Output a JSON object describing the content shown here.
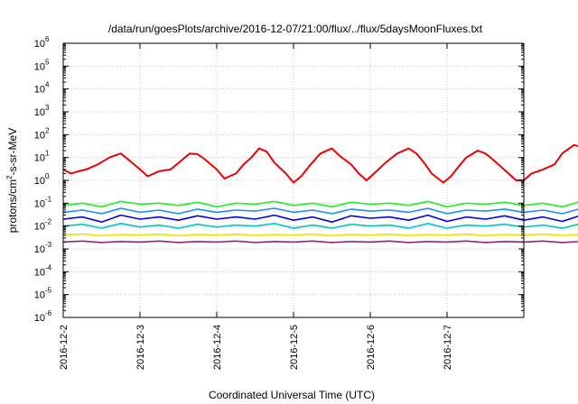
{
  "chart_data": {
    "type": "line",
    "title": "/data/run/goesPlots/archive/2016-12-07/21:00/flux/../flux/5daysMoonFluxes.txt",
    "xlabel": "Coordinated Universal Time (UTC)",
    "ylabel": {
      "base": "protons/cm",
      "sup": "2",
      "rest": "-s-sr-MeV"
    },
    "yscale": "log",
    "ylim": [
      1e-06,
      1000000.0
    ],
    "xlim": [
      "2016-12-02",
      "2016-12-08"
    ],
    "grid": true,
    "y_ticks": [
      {
        "base": "10",
        "exp": "-6"
      },
      {
        "base": "10",
        "exp": "-5"
      },
      {
        "base": "10",
        "exp": "-4"
      },
      {
        "base": "10",
        "exp": "-3"
      },
      {
        "base": "10",
        "exp": "-2"
      },
      {
        "base": "10",
        "exp": "-1"
      },
      {
        "base": "10",
        "exp": "0"
      },
      {
        "base": "10",
        "exp": "1"
      },
      {
        "base": "10",
        "exp": "2"
      },
      {
        "base": "10",
        "exp": "3"
      },
      {
        "base": "10",
        "exp": "4"
      },
      {
        "base": "10",
        "exp": "5"
      },
      {
        "base": "10",
        "exp": "6"
      }
    ],
    "x_ticks": [
      "2016-12-2",
      "2016-12-3",
      "2016-12-4",
      "2016-12-5",
      "2016-12-6",
      "2016-12-7"
    ],
    "series": [
      {
        "color": "#ee0000",
        "x_days": [
          0,
          0.1,
          0.2,
          0.3,
          0.45,
          0.6,
          0.75,
          0.85,
          1.0,
          1.1,
          1.25,
          1.4,
          1.55,
          1.65,
          1.75,
          1.85,
          2.0,
          2.1,
          2.25,
          2.35,
          2.45,
          2.55,
          2.65,
          2.75,
          2.9,
          3.0,
          3.1,
          3.2,
          3.35,
          3.5,
          3.6,
          3.75,
          3.85,
          3.95,
          4.05,
          4.2,
          4.35,
          4.5,
          4.6,
          4.7,
          4.8,
          4.95,
          5.05,
          5.15,
          5.25,
          5.4,
          5.5,
          5.6,
          5.7,
          5.8,
          5.9,
          6.0,
          6.1,
          6.25,
          6.4,
          6.5,
          6.65,
          6.75,
          6.85,
          6.95
        ],
        "values": [
          3,
          2,
          2.5,
          3,
          5,
          10,
          15,
          8,
          3,
          1.5,
          2.5,
          3,
          8,
          15,
          14,
          8,
          3,
          1.2,
          2,
          5,
          10,
          25,
          18,
          6,
          2,
          0.8,
          1.5,
          4,
          15,
          25,
          12,
          5,
          2,
          1,
          2,
          6,
          15,
          25,
          15,
          6,
          2,
          0.8,
          1.5,
          4,
          10,
          20,
          15,
          8,
          4,
          2,
          1,
          1,
          2,
          3,
          5,
          15,
          35,
          30,
          10,
          3
        ]
      },
      {
        "color": "#22ee22",
        "x_days": [
          0,
          0.25,
          0.5,
          0.75,
          1,
          1.25,
          1.5,
          1.75,
          2,
          2.25,
          2.5,
          2.75,
          3,
          3.25,
          3.5,
          3.75,
          4,
          4.25,
          4.5,
          4.75,
          5,
          5.25,
          5.5,
          5.75,
          6,
          6.25,
          6.5,
          6.75,
          6.95
        ],
        "values": [
          0.08,
          0.1,
          0.07,
          0.12,
          0.09,
          0.1,
          0.08,
          0.11,
          0.07,
          0.1,
          0.09,
          0.12,
          0.08,
          0.1,
          0.07,
          0.11,
          0.09,
          0.1,
          0.08,
          0.12,
          0.07,
          0.1,
          0.09,
          0.11,
          0.08,
          0.1,
          0.07,
          0.12,
          0.1
        ]
      },
      {
        "color": "#1c8cff",
        "x_days": [
          0,
          0.25,
          0.5,
          0.75,
          1,
          1.25,
          1.5,
          1.75,
          2,
          2.25,
          2.5,
          2.75,
          3,
          3.25,
          3.5,
          3.75,
          4,
          4.25,
          4.5,
          4.75,
          5,
          5.25,
          5.5,
          5.75,
          6,
          6.25,
          6.5,
          6.75,
          6.95
        ],
        "values": [
          0.04,
          0.05,
          0.035,
          0.06,
          0.04,
          0.05,
          0.035,
          0.055,
          0.04,
          0.05,
          0.045,
          0.06,
          0.04,
          0.05,
          0.035,
          0.055,
          0.045,
          0.05,
          0.04,
          0.06,
          0.035,
          0.05,
          0.045,
          0.055,
          0.04,
          0.05,
          0.035,
          0.06,
          0.05
        ]
      },
      {
        "color": "#0000ee",
        "x_days": [
          0,
          0.25,
          0.5,
          0.75,
          1,
          1.25,
          1.5,
          1.75,
          2,
          2.25,
          2.5,
          2.75,
          3,
          3.25,
          3.5,
          3.75,
          4,
          4.25,
          4.5,
          4.75,
          5,
          5.25,
          5.5,
          5.75,
          6,
          6.25,
          6.5,
          6.75,
          6.95
        ],
        "values": [
          0.02,
          0.025,
          0.015,
          0.03,
          0.02,
          0.025,
          0.018,
          0.028,
          0.02,
          0.025,
          0.02,
          0.03,
          0.018,
          0.025,
          0.015,
          0.028,
          0.022,
          0.025,
          0.018,
          0.03,
          0.016,
          0.025,
          0.02,
          0.028,
          0.018,
          0.025,
          0.016,
          0.03,
          0.022
        ]
      },
      {
        "color": "#00c8c8",
        "x_days": [
          0,
          0.25,
          0.5,
          0.75,
          1,
          1.25,
          1.5,
          1.75,
          2,
          2.25,
          2.5,
          2.75,
          3,
          3.25,
          3.5,
          3.75,
          4,
          4.25,
          4.5,
          4.75,
          5,
          5.25,
          5.5,
          5.75,
          6,
          6.25,
          6.5,
          6.75,
          6.95
        ],
        "values": [
          0.01,
          0.012,
          0.008,
          0.013,
          0.009,
          0.011,
          0.008,
          0.012,
          0.009,
          0.011,
          0.01,
          0.013,
          0.008,
          0.011,
          0.008,
          0.012,
          0.01,
          0.011,
          0.008,
          0.013,
          0.008,
          0.011,
          0.01,
          0.012,
          0.009,
          0.011,
          0.008,
          0.013,
          0.011
        ]
      },
      {
        "color": "#f0e000",
        "x_days": [
          0,
          0.25,
          0.5,
          0.75,
          1,
          1.25,
          1.5,
          1.75,
          2,
          2.25,
          2.5,
          2.75,
          3,
          3.25,
          3.5,
          3.75,
          4,
          4.25,
          4.5,
          4.75,
          5,
          5.25,
          5.5,
          5.75,
          6,
          6.25,
          6.5,
          6.75,
          6.95
        ],
        "values": [
          0.004,
          0.0045,
          0.0038,
          0.0042,
          0.004,
          0.0044,
          0.0038,
          0.0043,
          0.004,
          0.0044,
          0.0039,
          0.0042,
          0.004,
          0.0044,
          0.0038,
          0.0043,
          0.004,
          0.0044,
          0.0039,
          0.0042,
          0.004,
          0.0044,
          0.0038,
          0.0043,
          0.004,
          0.0044,
          0.0039,
          0.0042,
          0.004
        ]
      },
      {
        "color": "#8a2b6e",
        "x_days": [
          0,
          0.25,
          0.5,
          0.75,
          1,
          1.25,
          1.5,
          1.75,
          2,
          2.25,
          2.5,
          2.75,
          3,
          3.25,
          3.5,
          3.75,
          4,
          4.25,
          4.5,
          4.75,
          5,
          5.25,
          5.5,
          5.75,
          6,
          6.25,
          6.5,
          6.75,
          6.95
        ],
        "values": [
          0.002,
          0.0022,
          0.0019,
          0.0021,
          0.002,
          0.0022,
          0.0019,
          0.0021,
          0.002,
          0.0022,
          0.0019,
          0.0021,
          0.002,
          0.0022,
          0.0019,
          0.0021,
          0.002,
          0.0022,
          0.0019,
          0.0021,
          0.002,
          0.0022,
          0.0019,
          0.0021,
          0.002,
          0.0022,
          0.0019,
          0.0021,
          0.002
        ]
      }
    ]
  }
}
